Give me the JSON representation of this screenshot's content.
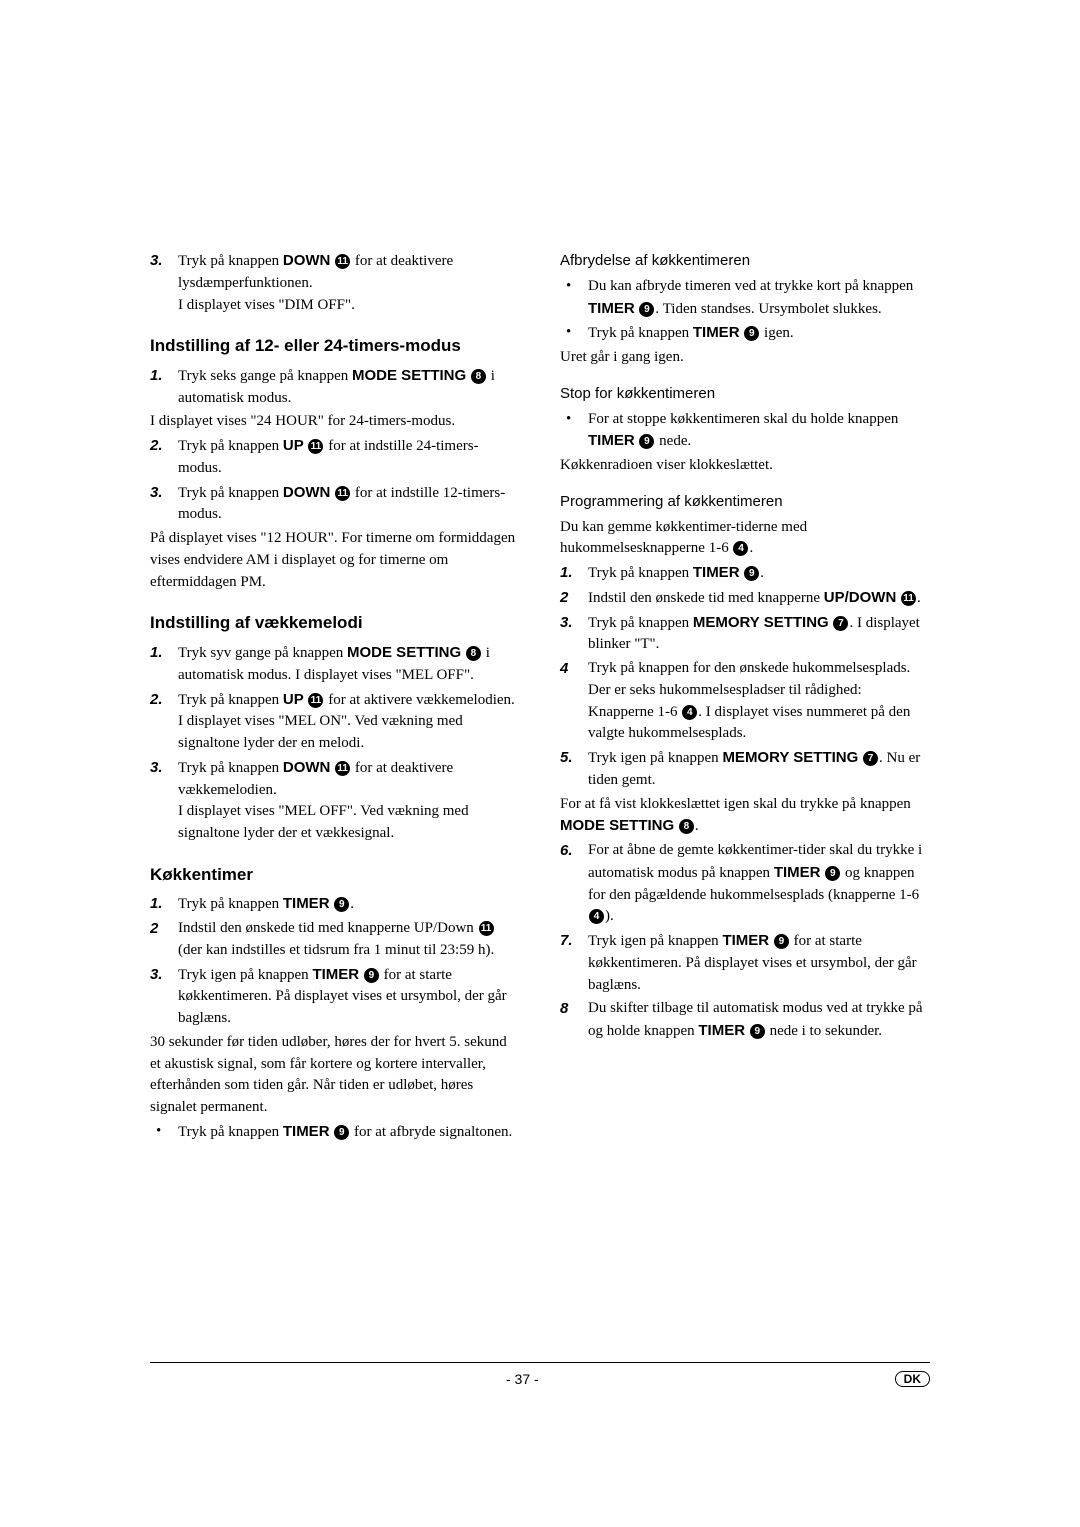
{
  "footer": {
    "page": "- 37 -",
    "lang": "DK"
  },
  "refs": {
    "r4": "4",
    "r7": "7",
    "r8": "8",
    "r9": "9",
    "r11": "11"
  },
  "left": {
    "top_item": {
      "num": "3.",
      "text_a": "Tryk på knappen ",
      "down": "DOWN",
      "text_b": " for at deaktivere lysdæmperfunktionen.",
      "text_c": "I displayet vises \"DIM OFF\"."
    },
    "h1": "Indstilling af 12- eller 24-timers-modus",
    "s1_i1": {
      "num": "1.",
      "a": "Tryk seks gange på knappen ",
      "b": "MODE SETTING",
      "c": " i automatisk modus."
    },
    "s1_p1": "I displayet vises \"24 HOUR\" for 24-timers-modus.",
    "s1_i2": {
      "num": "2.",
      "a": "Tryk på knappen ",
      "b": "UP",
      "c": " for at indstille 24-timers-modus."
    },
    "s1_i3": {
      "num": "3.",
      "a": "Tryk på knappen ",
      "b": "DOWN",
      "c": " for at indstille 12-timers-modus."
    },
    "s1_p2": "På displayet vises \"12 HOUR\". For timerne om formiddagen vises endvidere AM i displayet og for timerne om eftermiddagen PM.",
    "h2": "Indstilling af vækkemelodi",
    "s2_i1": {
      "num": "1.",
      "a": "Tryk syv gange på knappen ",
      "b": "MODE SETTING",
      "c": " i automatisk modus. I displayet vises \"MEL OFF\"."
    },
    "s2_i2": {
      "num": "2.",
      "a": "Tryk på knappen ",
      "b": "UP",
      "c": " for at aktivere vækkemelodien.",
      "d": "I displayet vises \"MEL ON\". Ved vækning med signaltone lyder der en melodi."
    },
    "s2_i3": {
      "num": "3.",
      "a": "Tryk på knappen ",
      "b": "DOWN",
      "c": " for at deaktivere vækkemelodien.",
      "d": "I displayet vises \"MEL OFF\". Ved vækning med signaltone lyder der et vækkesignal."
    },
    "h3": "Køkkentimer",
    "s3_i1": {
      "num": "1.",
      "a": "Tryk på knappen ",
      "b": "TIMER",
      "c": "."
    },
    "s3_i2": {
      "num": "2",
      "a": "Indstil den ønskede tid med knapperne UP/Down ",
      "c": " (der kan indstilles et tidsrum fra 1 minut til 23:59 h)."
    },
    "s3_i3": {
      "num": "3.",
      "a": "Tryk igen på knappen ",
      "b": "TIMER",
      "c": " for at starte køkkentimeren. På displayet vises et ursymbol, der går baglæns."
    },
    "s3_p1": "30 sekunder før tiden udløber, høres der for hvert 5. sekund et akustisk signal, som får kortere og kortere intervaller, efterhånden som tiden går. Når tiden er udløbet, høres signalet permanent.",
    "s3_b1": {
      "a": "Tryk på knappen ",
      "b": "TIMER",
      "c": " for at afbryde signaltonen."
    }
  },
  "right": {
    "sh1": "Afbrydelse af køkkentimeren",
    "r1_b1": {
      "a": "Du kan afbryde timeren ved at trykke kort på knappen ",
      "b": "TIMER",
      "c": ". Tiden standses. Ursymbolet slukkes."
    },
    "r1_b2": {
      "a": "Tryk på knappen ",
      "b": "TIMER",
      "c": " igen."
    },
    "r1_p1": "Uret går i gang igen.",
    "sh2": "Stop for køkkentimeren",
    "r2_b1": {
      "a": "For at stoppe køkkentimeren skal du holde knappen ",
      "b": "TIMER",
      "c": " nede."
    },
    "r2_p1": "Køkkenradioen viser klokkeslættet.",
    "sh3": "Programmering af køkkentimeren",
    "r3_p1": "Du kan gemme køkkentimer-tiderne med hukommelsesknapperne 1-6 ",
    "r3_i1": {
      "num": "1.",
      "a": "Tryk på knappen ",
      "b": "TIMER",
      "c": "."
    },
    "r3_i2": {
      "num": "2",
      "a": "Indstil den ønskede tid med knapperne ",
      "b": "UP/DOWN",
      "c": "."
    },
    "r3_i3": {
      "num": "3.",
      "a": "Tryk på knappen ",
      "b": "MEMORY SETTING",
      "c": ". I displayet blinker \"T\"."
    },
    "r3_i4": {
      "num": "4",
      "a": "Tryk på knappen for den ønskede hukommelsesplads. Der er seks hukommelsespladser til rådighed: Knapperne 1-6 ",
      "c": ". I displayet vises nummeret på den valgte hukommelsesplads."
    },
    "r3_i5": {
      "num": "5.",
      "a": "Tryk igen på knappen ",
      "b": "MEMORY SETTING",
      "c": ". Nu er tiden gemt."
    },
    "r3_p2a": "For at få vist klokkeslættet igen skal du trykke på knappen ",
    "r3_p2b": "MODE SETTING",
    "r3_i6": {
      "num": "6.",
      "a": "For at åbne de gemte køkkentimer-tider skal du trykke i automatisk modus på knappen ",
      "b": "TIMER",
      "c": " og knappen for den pågældende hukommelsesplads (knapperne 1-6 ",
      "d": ")."
    },
    "r3_i7": {
      "num": "7.",
      "a": "Tryk igen på knappen ",
      "b": "TIMER",
      "c": " for at starte køkkentimeren. På displayet vises et ursymbol, der går baglæns."
    },
    "r3_i8": {
      "num": "8",
      "a": "Du skifter tilbage til automatisk modus ved at trykke på og holde knappen ",
      "b": "TIMER",
      "c": " nede i to sekunder."
    }
  }
}
